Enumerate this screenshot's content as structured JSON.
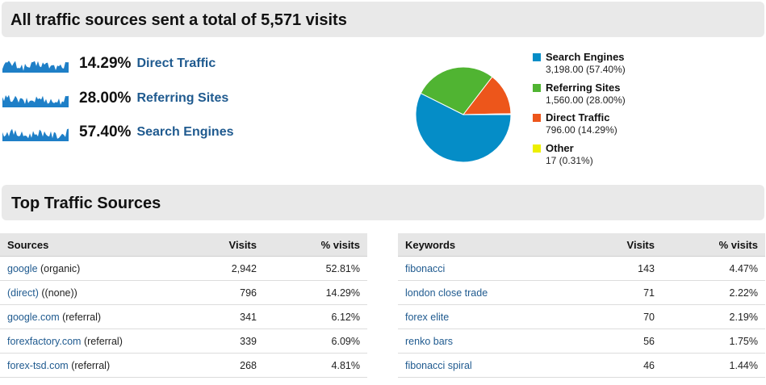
{
  "summary": {
    "title": "All traffic sources sent a total of 5,571 visits"
  },
  "traffic": [
    {
      "percent": "14.29%",
      "label": "Direct Traffic"
    },
    {
      "percent": "28.00%",
      "label": "Referring Sites"
    },
    {
      "percent": "57.40%",
      "label": "Search Engines"
    }
  ],
  "colors": {
    "search": "#058dc7",
    "referring": "#50b432",
    "direct": "#ed561b",
    "other": "#edef00",
    "link": "#1f5a8f",
    "sparkline": "#1e7fc7"
  },
  "legend": [
    {
      "name": "Search Engines",
      "value": "3,198.00 (57.40%)",
      "color_key": "search"
    },
    {
      "name": "Referring Sites",
      "value": "1,560.00 (28.00%)",
      "color_key": "referring"
    },
    {
      "name": "Direct Traffic",
      "value": "796.00 (14.29%)",
      "color_key": "direct"
    },
    {
      "name": "Other",
      "value": "17 (0.31%)",
      "color_key": "other"
    }
  ],
  "chart_data": {
    "type": "pie",
    "slices": [
      {
        "name": "Search Engines",
        "value": 3198,
        "percent": 57.4,
        "color": "#058dc7"
      },
      {
        "name": "Referring Sites",
        "value": 1560,
        "percent": 28.0,
        "color": "#50b432"
      },
      {
        "name": "Direct Traffic",
        "value": 796,
        "percent": 14.29,
        "color": "#ed561b"
      },
      {
        "name": "Other",
        "value": 17,
        "percent": 0.31,
        "color": "#edef00"
      }
    ],
    "legend_position": "right"
  },
  "top_sources": {
    "title": "Top Traffic Sources",
    "sources_table": {
      "headers": [
        "Sources",
        "Visits",
        "% visits"
      ],
      "rows": [
        {
          "link": "google",
          "suffix": " (organic)",
          "visits": "2,942",
          "pct": "52.81%"
        },
        {
          "link": "(direct)",
          "suffix": " ((none))",
          "visits": "796",
          "pct": "14.29%"
        },
        {
          "link": "google.com",
          "suffix": " (referral)",
          "visits": "341",
          "pct": "6.12%"
        },
        {
          "link": "forexfactory.com",
          "suffix": " (referral)",
          "visits": "339",
          "pct": "6.09%"
        },
        {
          "link": "forex-tsd.com",
          "suffix": " (referral)",
          "visits": "268",
          "pct": "4.81%"
        }
      ]
    },
    "keywords_table": {
      "headers": [
        "Keywords",
        "Visits",
        "% visits"
      ],
      "rows": [
        {
          "link": "fibonacci",
          "visits": "143",
          "pct": "4.47%"
        },
        {
          "link": "london close trade",
          "visits": "71",
          "pct": "2.22%"
        },
        {
          "link": "forex elite",
          "visits": "70",
          "pct": "2.19%"
        },
        {
          "link": "renko bars",
          "visits": "56",
          "pct": "1.75%"
        },
        {
          "link": "fibonacci spiral",
          "visits": "46",
          "pct": "1.44%"
        }
      ]
    }
  }
}
